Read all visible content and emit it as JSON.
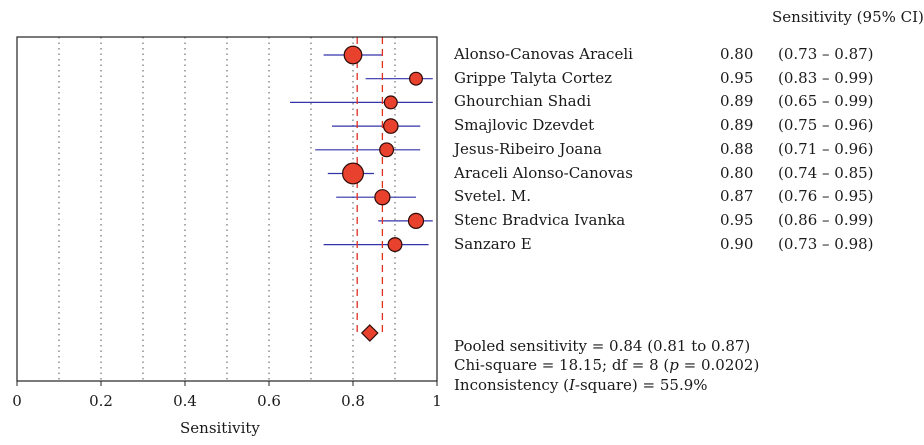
{
  "chart_data": {
    "type": "forest",
    "xlabel": "Sensitivity",
    "xlim": [
      0,
      1
    ],
    "xticks": [
      0,
      0.2,
      0.4,
      0.6,
      0.8,
      1
    ],
    "xtick_labels": [
      "0",
      "0.2",
      "0.4",
      "0.6",
      "0.8",
      "1"
    ],
    "grid": "vertical dotted lines at 0.1 intervals",
    "ci_header": "Sensitivity (95% CI)",
    "studies": [
      {
        "name": "Alonso-Canovas Araceli",
        "estimate": 0.8,
        "lower": 0.73,
        "upper": 0.87,
        "est_label": "0.80",
        "ci_label": "(0.73 – 0.87)",
        "weight": 3
      },
      {
        "name": "Grippe Talyta Cortez",
        "estimate": 0.95,
        "lower": 0.83,
        "upper": 0.99,
        "est_label": "0.95",
        "ci_label": "(0.83 – 0.99)",
        "weight": 1.5
      },
      {
        "name": "Ghourchian Shadi",
        "estimate": 0.89,
        "lower": 0.65,
        "upper": 0.99,
        "est_label": "0.89",
        "ci_label": "(0.65 – 0.99)",
        "weight": 1.5
      },
      {
        "name": "Smajlovic Dzevdet",
        "estimate": 0.89,
        "lower": 0.75,
        "upper": 0.96,
        "est_label": "0.89",
        "ci_label": "(0.75 – 0.96)",
        "weight": 2
      },
      {
        "name": "Jesus-Ribeiro Joana",
        "estimate": 0.88,
        "lower": 0.71,
        "upper": 0.96,
        "est_label": "0.88",
        "ci_label": "(0.71 – 0.96)",
        "weight": 1.8
      },
      {
        "name": "Araceli Alonso-Canovas",
        "estimate": 0.8,
        "lower": 0.74,
        "upper": 0.85,
        "est_label": "0.80",
        "ci_label": "(0.74 – 0.85)",
        "weight": 4
      },
      {
        "name": "Svetel. M.",
        "estimate": 0.87,
        "lower": 0.76,
        "upper": 0.95,
        "est_label": "0.87",
        "ci_label": "(0.76 – 0.95)",
        "weight": 2.2
      },
      {
        "name": "Stenc Bradvica Ivanka",
        "estimate": 0.95,
        "lower": 0.86,
        "upper": 0.99,
        "est_label": "0.95",
        "ci_label": "(0.86 – 0.99)",
        "weight": 2.2
      },
      {
        "name": "Sanzaro E",
        "estimate": 0.9,
        "lower": 0.73,
        "upper": 0.98,
        "est_label": "0.90",
        "ci_label": "(0.73 – 0.98)",
        "weight": 1.8
      }
    ],
    "pooled": {
      "estimate": 0.84,
      "lower": 0.81,
      "upper": 0.87
    },
    "stats_text": {
      "pooled_line": "Pooled sensitivity = 0.84 (0.81 to 0.87)",
      "chi_prefix": "Chi-square = 18.15; df = 8 (",
      "chi_p": "p",
      "chi_suffix": " = 0.0202)",
      "incon_prefix": "Inconsistency (",
      "incon_i": "I",
      "incon_suffix": "-square) = 55.9%"
    },
    "colors": {
      "marker_fill": "#e8422f",
      "marker_stroke": "#2b0a06",
      "ci_line": "#3333aa",
      "ref_line": "#e0301e",
      "grid": "#555555",
      "axis": "#222222"
    }
  }
}
